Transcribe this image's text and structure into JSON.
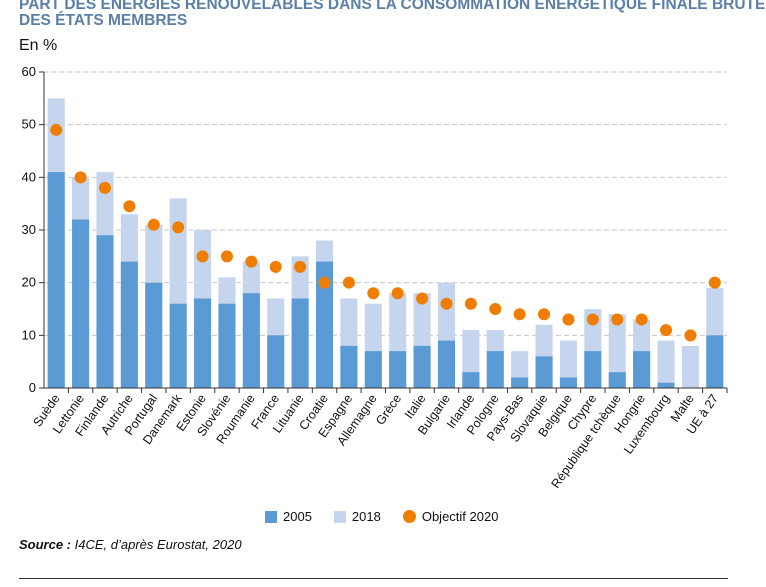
{
  "chart_data": {
    "type": "bar",
    "title": "PART DES ÉNERGIES RENOUVELABLES DANS LA CONSOMMATION ÉNERGÉTIQUE FINALE BRUTE DES ÉTATS MEMBRES",
    "ylabel": "En %",
    "ylim": [
      0,
      60
    ],
    "yticks": [
      0,
      10,
      20,
      30,
      40,
      50,
      60
    ],
    "grid": true,
    "legend_position": "bottom",
    "categories": [
      "Suède",
      "Lettonie",
      "Finlande",
      "Autriche",
      "Portugal",
      "Danemark",
      "Estonie",
      "Slovénie",
      "Roumanie",
      "France",
      "Lituanie",
      "Croatie",
      "Espagne",
      "Allemagne",
      "Grèce",
      "Italie",
      "Bulgarie",
      "Irlande",
      "Pologne",
      "Pays-Bas",
      "Slovaquie",
      "Belgique",
      "Chypre",
      "République tchèque",
      "Hongrie",
      "Luxembourg",
      "Malte",
      "UE à 27"
    ],
    "series": [
      {
        "name": "2005",
        "type": "bar",
        "color": "#5b9bd5",
        "values": [
          41,
          32,
          29,
          24,
          20,
          16,
          17,
          16,
          18,
          10,
          17,
          24,
          8,
          7,
          7,
          8,
          9,
          3,
          7,
          2,
          6,
          2,
          7,
          3,
          7,
          1,
          0,
          10
        ]
      },
      {
        "name": "2018",
        "type": "bar",
        "color": "#c5d5ee",
        "values": [
          55,
          40,
          41,
          33,
          31,
          36,
          30,
          21,
          24,
          17,
          25,
          28,
          17,
          16,
          18,
          18,
          20,
          11,
          11,
          7,
          12,
          9,
          15,
          14,
          13,
          9,
          8,
          19
        ]
      },
      {
        "name": "Objectif 2020",
        "type": "scatter",
        "color": "#ef7d00",
        "values": [
          49,
          40,
          38,
          34.5,
          31,
          30.5,
          25,
          25,
          24,
          23,
          23,
          20,
          20,
          18,
          18,
          17,
          16,
          16,
          15,
          14,
          14,
          13,
          13,
          13,
          13,
          11,
          10,
          20
        ]
      }
    ]
  },
  "source": {
    "label": "Source :",
    "text": " I4CE, d’après Eurostat, 2020"
  }
}
